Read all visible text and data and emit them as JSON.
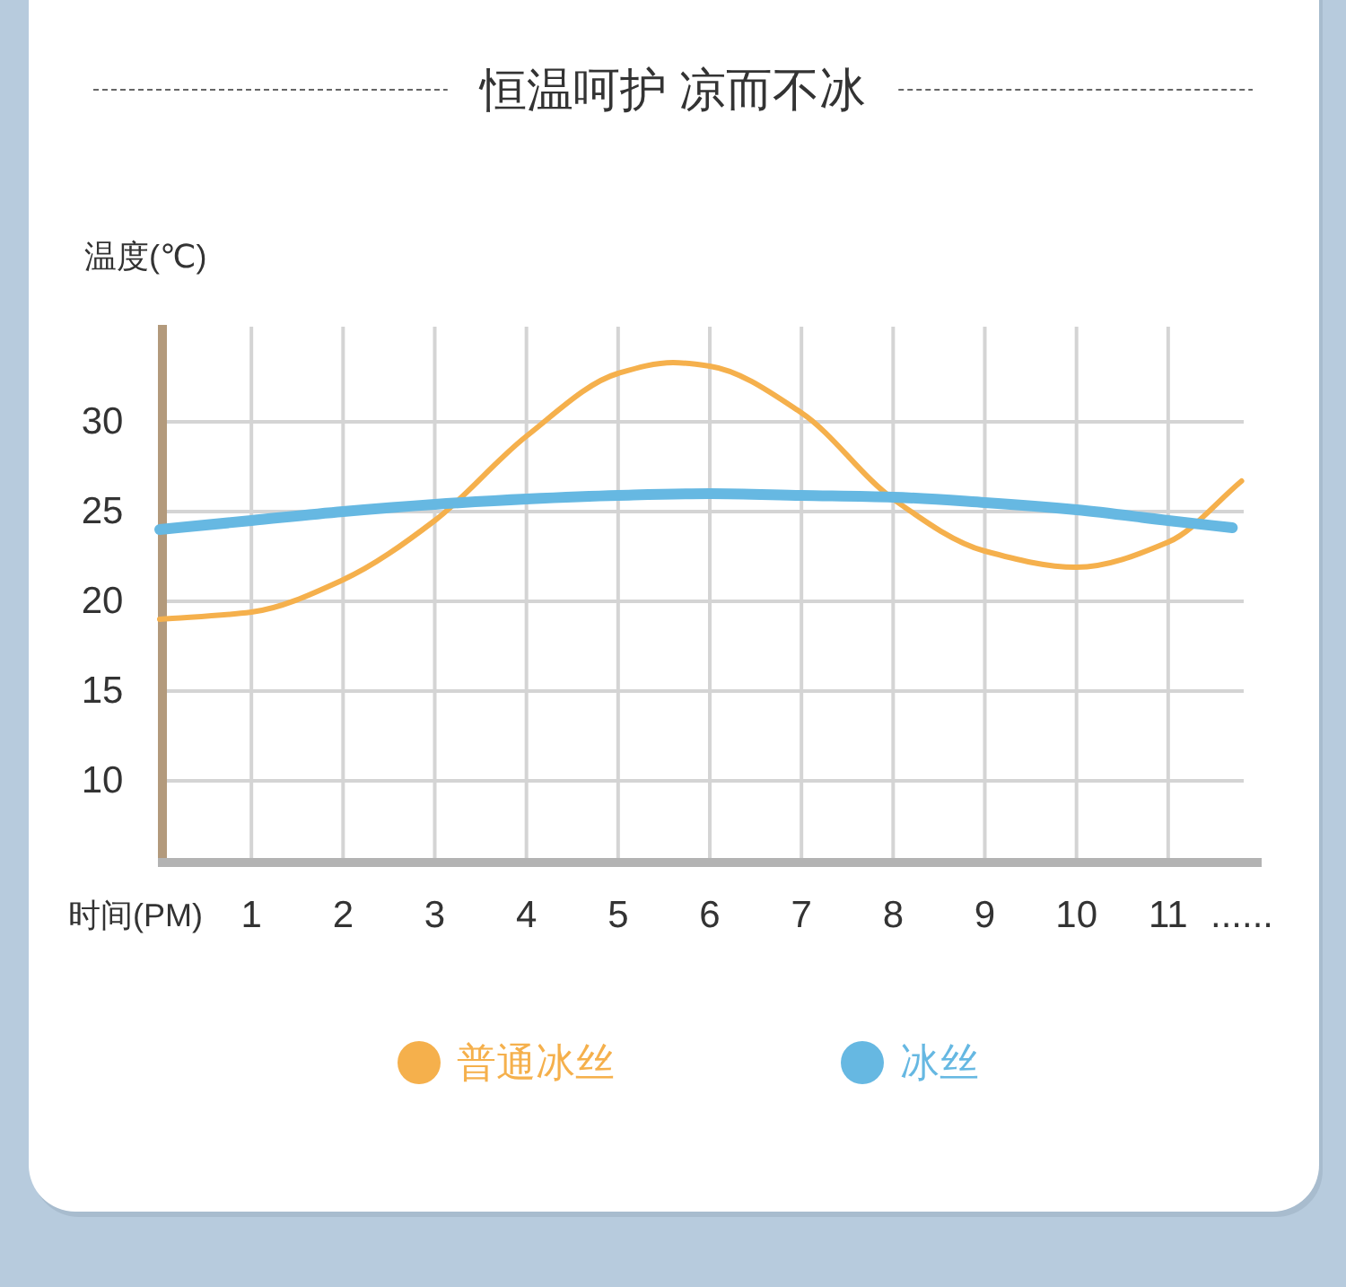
{
  "chart_data": {
    "type": "line",
    "title": "恒温呵护 凉而不冰",
    "xlabel": "时间(PM)",
    "ylabel": "温度(℃)",
    "xlim": [
      0,
      12
    ],
    "ylim": [
      5.5,
      35.3
    ],
    "xticks": [
      1,
      2,
      3,
      4,
      5,
      6,
      7,
      8,
      9,
      10,
      11
    ],
    "yticks": [
      10,
      15,
      20,
      25,
      30
    ],
    "grid": true,
    "legend": "bottom",
    "line_style": "solid",
    "annotations": [
      "......"
    ],
    "series": [
      {
        "name": "普通冰丝",
        "color": "#f5b04c",
        "x": [
          0,
          1,
          2,
          3,
          4,
          5,
          5.6,
          6,
          7,
          8,
          9,
          10,
          11,
          11.8
        ],
        "values": [
          19.0,
          19.4,
          21.2,
          24.5,
          29.2,
          32.7,
          33.3,
          33.1,
          30.5,
          25.7,
          22.8,
          21.9,
          23.3,
          26.7
        ]
      },
      {
        "name": "冰丝",
        "color": "#66b8e2",
        "x": [
          0,
          1,
          2,
          3,
          4,
          5,
          6,
          7,
          8,
          9,
          10,
          11,
          11.7
        ],
        "values": [
          24.0,
          24.5,
          25.0,
          25.4,
          25.7,
          25.9,
          26.0,
          25.9,
          25.8,
          25.5,
          25.1,
          24.5,
          24.1
        ]
      }
    ]
  }
}
